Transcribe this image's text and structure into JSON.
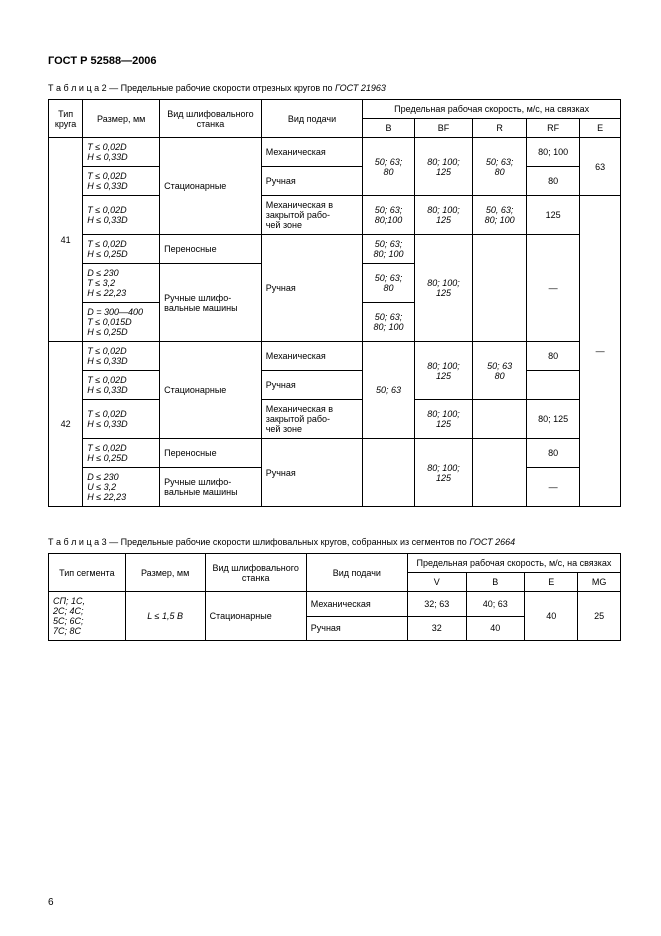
{
  "header": "ГОСТ Р 52588—2006",
  "table2_caption_prefix": "Т а б л и ц а  2",
  "table2_caption_rest": " — Предельные рабочие скорости отрезных кругов по ",
  "table2_caption_ref": "ГОСТ 21963",
  "t2_h_type": "Тип круга",
  "t2_h_size": "Размер, мм",
  "t2_h_machine": "Вид шлифовального станка",
  "t2_h_feed": "Вид подачи",
  "t2_h_speed": "Предельная рабочая скорость, м/с, на связках",
  "t2_h_B": "B",
  "t2_h_BF": "BF",
  "t2_h_R": "R",
  "t2_h_RF": "RF",
  "t2_h_E": "E",
  "type41": "41",
  "type42": "42",
  "sz_a": "T ≤ 0,02D\nH ≤ 0,33D",
  "sz_b": "T ≤ 0,02D\nH ≤ 0,25D",
  "sz_c": "D ≤ 230\nT ≤ 3,2\nH ≤ 22,23",
  "sz_d": "D = 300—400\nT ≤ 0,015D\nH ≤ 0,25D",
  "sz_e": "D ≤ 230\nU ≤ 3,2\nH ≤ 22,23",
  "mach_stationary": "Стационарные",
  "mach_portable": "Переносные",
  "mach_handheld": "Ручные шлифо-\nвальные машины",
  "feed_mech": "Механическая",
  "feed_manual": "Ручная",
  "feed_mech_closed": "Механическая в закрытой рабо-\nчей зоне",
  "v_50_63_80": "50; 63;\n80",
  "v_50_63_80_100": "50; 63;\n80; 100",
  "v_50_63_80100": "50; 63;\n80;100",
  "v_50_63": "50; 63",
  "v_80_100_125": "80; 100;\n125",
  "v_50_63_80_b": "50; 63;\n80",
  "v_50_63_80_100_b": "50, 63;\n80; 100",
  "v_80_100": "80; 100",
  "v_80": "80",
  "v_125": "125",
  "v_80_125": "80; 125",
  "v_50_63_2": "50; 63\n80",
  "v_63": "63",
  "dash": "—",
  "table3_caption_prefix": "Т а б л и ц а  3",
  "table3_caption_rest": " — Предельные рабочие скорости шлифовальных кругов, собранных из сегментов по ",
  "table3_caption_ref": "ГОСТ 2664",
  "t3_h_type": "Тип сегмента",
  "t3_h_size": "Размер, мм",
  "t3_h_machine": "Вид шлифовального станка",
  "t3_h_feed": "Вид подачи",
  "t3_h_speed": "Предельная рабочая скорость, м/с, на связках",
  "t3_h_V": "V",
  "t3_h_B": "B",
  "t3_h_E": "E",
  "t3_h_MG": "MG",
  "t3_types": "СП; 1С,\n2С; 4С;\n5С; 6С;\n7С; 8С",
  "t3_size": "L ≤ 1,5 B",
  "t3_32_63": "32; 63",
  "t3_40_63": "40; 63",
  "t3_40": "40",
  "t3_25": "25",
  "t3_32": "32",
  "pagenum": "6"
}
